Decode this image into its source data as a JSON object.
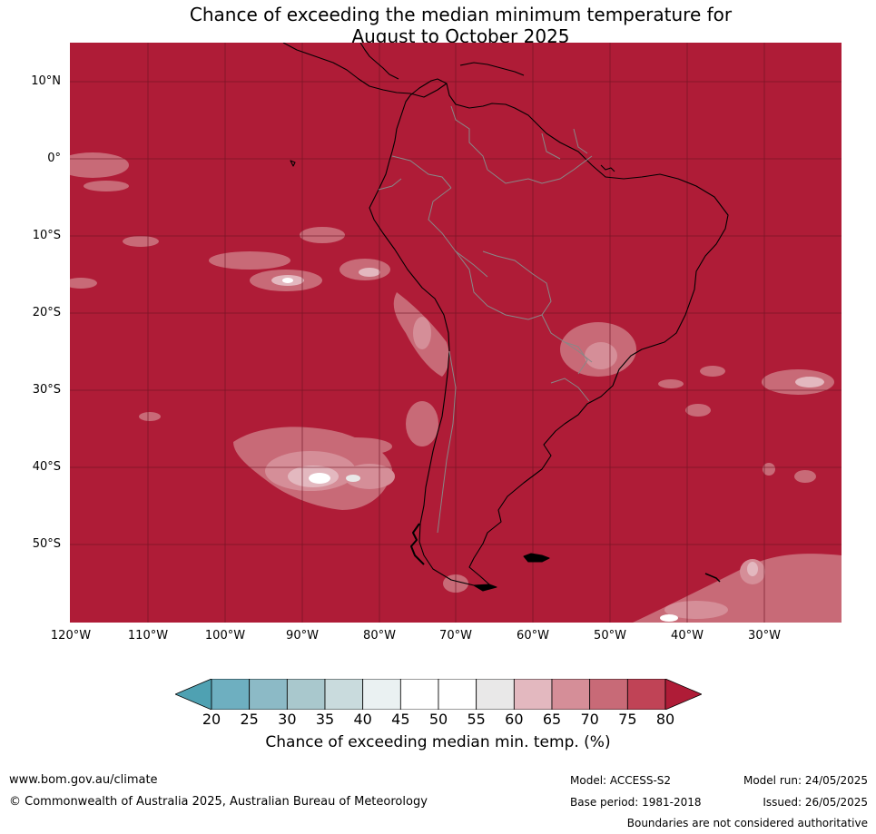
{
  "title": {
    "line1": "Chance of exceeding the median minimum temperature for",
    "line2": "August to October 2025"
  },
  "map": {
    "background_color": "#af1c37",
    "lat_labels": [
      "10°N",
      "0°",
      "10°S",
      "20°S",
      "30°S",
      "40°S",
      "50°S"
    ],
    "lon_labels": [
      "120°W",
      "110°W",
      "100°W",
      "90°W",
      "80°W",
      "70°W",
      "60°W",
      "50°W",
      "40°W",
      "30°W"
    ]
  },
  "colorbar": {
    "ticks": [
      "20",
      "25",
      "30",
      "35",
      "40",
      "45",
      "50",
      "55",
      "60",
      "65",
      "70",
      "75",
      "80"
    ],
    "colors": [
      "#4fa1b2",
      "#6eafc0",
      "#8cbac6",
      "#a9c8cd",
      "#c9dbdd",
      "#eaf1f2",
      "#ffffff",
      "#ffffff",
      "#e9e8e8",
      "#e3b8bf",
      "#d58e98",
      "#c86a77",
      "#c04356",
      "#af1c37"
    ],
    "label": "Chance of exceeding median min. temp. (%)"
  },
  "footer": {
    "website": "www.bom.gov.au/climate",
    "copyright": "© Commonwealth of Australia 2025, Australian Bureau of Meteorology",
    "model": "Model: ACCESS-S2",
    "base_period": "Base period: 1981-2018",
    "model_run": "Model run: 24/05/2025",
    "issued": "Issued: 26/05/2025",
    "disclaimer": "Boundaries are not considered authoritative"
  }
}
